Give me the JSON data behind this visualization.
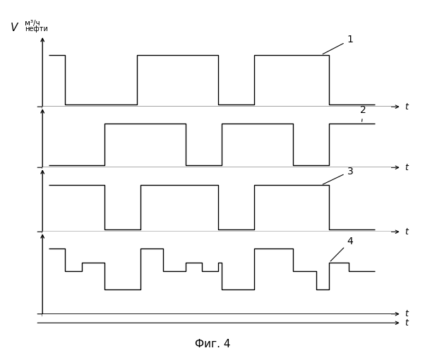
{
  "background_color": "#ffffff",
  "line_color": "#000000",
  "fig_caption": "Фиг. 4",
  "s1": [
    [
      0.0,
      1
    ],
    [
      0.05,
      1
    ],
    [
      0.05,
      0
    ],
    [
      0.27,
      0
    ],
    [
      0.27,
      1
    ],
    [
      0.52,
      1
    ],
    [
      0.52,
      0
    ],
    [
      0.63,
      0
    ],
    [
      0.63,
      1
    ],
    [
      0.86,
      1
    ],
    [
      0.86,
      0
    ],
    [
      1.0,
      0
    ]
  ],
  "s2": [
    [
      0.0,
      0
    ],
    [
      0.17,
      0
    ],
    [
      0.17,
      1
    ],
    [
      0.42,
      1
    ],
    [
      0.42,
      0
    ],
    [
      0.53,
      0
    ],
    [
      0.53,
      1
    ],
    [
      0.75,
      1
    ],
    [
      0.75,
      0
    ],
    [
      0.86,
      0
    ],
    [
      0.86,
      1
    ],
    [
      1.0,
      1
    ]
  ],
  "s3": [
    [
      0.0,
      1
    ],
    [
      0.17,
      1
    ],
    [
      0.17,
      0
    ],
    [
      0.28,
      0
    ],
    [
      0.28,
      1
    ],
    [
      0.52,
      1
    ],
    [
      0.52,
      0
    ],
    [
      0.63,
      0
    ],
    [
      0.63,
      1
    ],
    [
      0.86,
      1
    ],
    [
      0.86,
      0
    ],
    [
      1.0,
      0
    ]
  ],
  "s4": [
    [
      0.0,
      1.0
    ],
    [
      0.05,
      1.0
    ],
    [
      0.05,
      0.45
    ],
    [
      0.1,
      0.45
    ],
    [
      0.1,
      0.65
    ],
    [
      0.17,
      0.65
    ],
    [
      0.17,
      0.0
    ],
    [
      0.28,
      0.0
    ],
    [
      0.28,
      1.0
    ],
    [
      0.35,
      1.0
    ],
    [
      0.35,
      0.45
    ],
    [
      0.42,
      0.45
    ],
    [
      0.42,
      0.65
    ],
    [
      0.47,
      0.65
    ],
    [
      0.47,
      0.45
    ],
    [
      0.52,
      0.45
    ],
    [
      0.52,
      0.65
    ],
    [
      0.53,
      0.65
    ],
    [
      0.53,
      0.0
    ],
    [
      0.63,
      0.0
    ],
    [
      0.63,
      1.0
    ],
    [
      0.75,
      1.0
    ],
    [
      0.75,
      0.45
    ],
    [
      0.82,
      0.45
    ],
    [
      0.82,
      0.0
    ],
    [
      0.86,
      0.0
    ],
    [
      0.86,
      0.65
    ],
    [
      0.92,
      0.65
    ],
    [
      0.92,
      0.45
    ],
    [
      1.0,
      0.45
    ]
  ],
  "ylim_signals": [
    -0.05,
    1.35
  ],
  "ylim_s4": [
    -0.5,
    1.35
  ],
  "xlim": [
    0.0,
    1.0
  ]
}
